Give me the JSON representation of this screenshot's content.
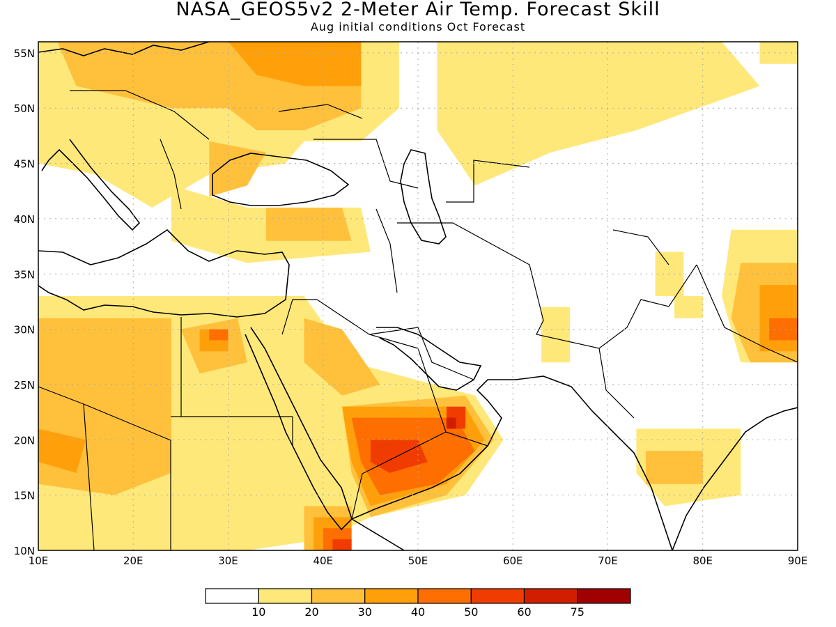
{
  "title": "NASA_GEOS5v2 2-Meter Air Temp. Forecast Skill",
  "subtitle": "Aug initial conditions  Oct Forecast",
  "map": {
    "region": {
      "lon_min": 10,
      "lon_max": 90,
      "lat_min": 10,
      "lat_max": 56
    },
    "lon_ticks": [
      {
        "value": 10,
        "label": "10E"
      },
      {
        "value": 20,
        "label": "20E"
      },
      {
        "value": 30,
        "label": "30E"
      },
      {
        "value": 40,
        "label": "40E"
      },
      {
        "value": 50,
        "label": "50E"
      },
      {
        "value": 60,
        "label": "60E"
      },
      {
        "value": 70,
        "label": "70E"
      },
      {
        "value": 80,
        "label": "80E"
      },
      {
        "value": 90,
        "label": "90E"
      }
    ],
    "lat_ticks": [
      {
        "value": 10,
        "label": "10N"
      },
      {
        "value": 15,
        "label": "15N"
      },
      {
        "value": 20,
        "label": "20N"
      },
      {
        "value": 25,
        "label": "25N"
      },
      {
        "value": 30,
        "label": "30N"
      },
      {
        "value": 35,
        "label": "35N"
      },
      {
        "value": 40,
        "label": "40N"
      },
      {
        "value": 45,
        "label": "45N"
      },
      {
        "value": 50,
        "label": "50N"
      },
      {
        "value": 55,
        "label": "55N"
      }
    ],
    "grid": "dotted"
  },
  "colorbar": {
    "labels": [
      "10",
      "20",
      "30",
      "40",
      "50",
      "60",
      "75"
    ],
    "colors": [
      "#ffffff",
      "#ffe87a",
      "#ffc03c",
      "#ffa00a",
      "#ff6e00",
      "#f03c00",
      "#d21e00",
      "#a00000"
    ]
  },
  "skill_regions": [
    {
      "level": 1,
      "polys": [
        [
          [
            10,
            56
          ],
          [
            48,
            56
          ],
          [
            48,
            50
          ],
          [
            44,
            47
          ],
          [
            38,
            47
          ],
          [
            36,
            45
          ],
          [
            28,
            44
          ],
          [
            22,
            41
          ],
          [
            16,
            44
          ],
          [
            10,
            45
          ]
        ],
        [
          [
            24,
            43
          ],
          [
            32,
            41
          ],
          [
            44,
            41
          ],
          [
            45,
            37
          ],
          [
            32,
            36
          ],
          [
            24,
            38
          ]
        ],
        [
          [
            10,
            33
          ],
          [
            38,
            33
          ],
          [
            43,
            27
          ],
          [
            56,
            24
          ],
          [
            59,
            20
          ],
          [
            55,
            15
          ],
          [
            45,
            13
          ],
          [
            40,
            11
          ],
          [
            32,
            10
          ],
          [
            10,
            10
          ]
        ],
        [
          [
            52,
            56
          ],
          [
            82,
            56
          ],
          [
            86,
            52
          ],
          [
            73,
            48
          ],
          [
            64,
            46
          ],
          [
            56,
            43
          ],
          [
            52,
            48
          ]
        ],
        [
          [
            86,
            56
          ],
          [
            90,
            56
          ],
          [
            90,
            54
          ],
          [
            86,
            54
          ]
        ],
        [
          [
            83,
            39
          ],
          [
            90,
            39
          ],
          [
            90,
            27
          ],
          [
            84,
            27
          ],
          [
            82,
            33
          ]
        ],
        [
          [
            63,
            32
          ],
          [
            66,
            32
          ],
          [
            66,
            27
          ],
          [
            63,
            27
          ]
        ],
        [
          [
            75,
            37
          ],
          [
            78,
            37
          ],
          [
            78,
            33
          ],
          [
            75,
            33
          ]
        ],
        [
          [
            73,
            21
          ],
          [
            84,
            21
          ],
          [
            84,
            15
          ],
          [
            76,
            14
          ],
          [
            73,
            17
          ]
        ],
        [
          [
            77,
            33
          ],
          [
            80,
            33
          ],
          [
            80,
            31
          ],
          [
            77,
            31
          ]
        ]
      ]
    },
    {
      "level": 2,
      "polys": [
        [
          [
            12,
            56
          ],
          [
            44,
            56
          ],
          [
            44,
            50
          ],
          [
            38,
            48
          ],
          [
            33,
            48
          ],
          [
            30,
            50
          ],
          [
            24,
            50
          ],
          [
            14,
            52
          ]
        ],
        [
          [
            28,
            47
          ],
          [
            34,
            46
          ],
          [
            32,
            43
          ],
          [
            28,
            42
          ]
        ],
        [
          [
            10,
            31
          ],
          [
            24,
            31
          ],
          [
            24,
            17
          ],
          [
            18,
            15
          ],
          [
            10,
            16
          ]
        ],
        [
          [
            25,
            30
          ],
          [
            31,
            31
          ],
          [
            32,
            27
          ],
          [
            27,
            26
          ]
        ],
        [
          [
            38,
            31
          ],
          [
            42,
            30
          ],
          [
            46,
            25
          ],
          [
            42,
            24
          ],
          [
            38,
            27
          ]
        ],
        [
          [
            42,
            23
          ],
          [
            55,
            24
          ],
          [
            58,
            20
          ],
          [
            53,
            15
          ],
          [
            45,
            13
          ],
          [
            43,
            17
          ]
        ],
        [
          [
            34,
            41
          ],
          [
            42,
            41
          ],
          [
            43,
            38
          ],
          [
            34,
            38
          ]
        ],
        [
          [
            84,
            36
          ],
          [
            90,
            36
          ],
          [
            90,
            27
          ],
          [
            85,
            27
          ],
          [
            83,
            31
          ]
        ],
        [
          [
            74,
            19
          ],
          [
            80,
            19
          ],
          [
            80,
            16
          ],
          [
            74,
            16
          ]
        ],
        [
          [
            38,
            14
          ],
          [
            43,
            14
          ],
          [
            43,
            10
          ],
          [
            38,
            10
          ]
        ]
      ]
    },
    {
      "level": 3,
      "polys": [
        [
          [
            30,
            56
          ],
          [
            44,
            56
          ],
          [
            44,
            52
          ],
          [
            38,
            52
          ],
          [
            33,
            53
          ]
        ],
        [
          [
            10,
            21
          ],
          [
            15,
            20
          ],
          [
            14,
            17
          ],
          [
            10,
            18
          ]
        ],
        [
          [
            42,
            23
          ],
          [
            55,
            23
          ],
          [
            57,
            20
          ],
          [
            53,
            16
          ],
          [
            45,
            14
          ],
          [
            43,
            18
          ]
        ],
        [
          [
            27,
            30
          ],
          [
            30,
            30
          ],
          [
            30,
            28
          ],
          [
            27,
            28
          ]
        ],
        [
          [
            86,
            34
          ],
          [
            90,
            34
          ],
          [
            90,
            28
          ],
          [
            86,
            28
          ]
        ],
        [
          [
            39,
            13
          ],
          [
            43,
            13
          ],
          [
            43,
            10
          ],
          [
            39,
            10
          ]
        ]
      ]
    },
    {
      "level": 4,
      "polys": [
        [
          [
            43,
            22
          ],
          [
            54,
            22
          ],
          [
            56,
            19
          ],
          [
            52,
            16
          ],
          [
            46,
            15
          ],
          [
            44,
            18
          ]
        ],
        [
          [
            28,
            30
          ],
          [
            30,
            30
          ],
          [
            30,
            29
          ],
          [
            28,
            29
          ]
        ],
        [
          [
            40,
            12
          ],
          [
            43,
            12
          ],
          [
            43,
            10
          ],
          [
            40,
            10
          ]
        ],
        [
          [
            87,
            31
          ],
          [
            90,
            31
          ],
          [
            90,
            29
          ],
          [
            87,
            29
          ]
        ]
      ]
    },
    {
      "level": 5,
      "polys": [
        [
          [
            45,
            20
          ],
          [
            50,
            20
          ],
          [
            51,
            18
          ],
          [
            47,
            17
          ],
          [
            45,
            18
          ]
        ],
        [
          [
            53,
            23
          ],
          [
            55,
            23
          ],
          [
            55,
            21
          ],
          [
            53,
            21
          ]
        ],
        [
          [
            41,
            11
          ],
          [
            43,
            11
          ],
          [
            43,
            10
          ],
          [
            41,
            10
          ]
        ]
      ]
    },
    {
      "level": 6,
      "polys": [
        [
          [
            53,
            22
          ],
          [
            54,
            22
          ],
          [
            54,
            21
          ],
          [
            53,
            21
          ]
        ]
      ]
    }
  ]
}
